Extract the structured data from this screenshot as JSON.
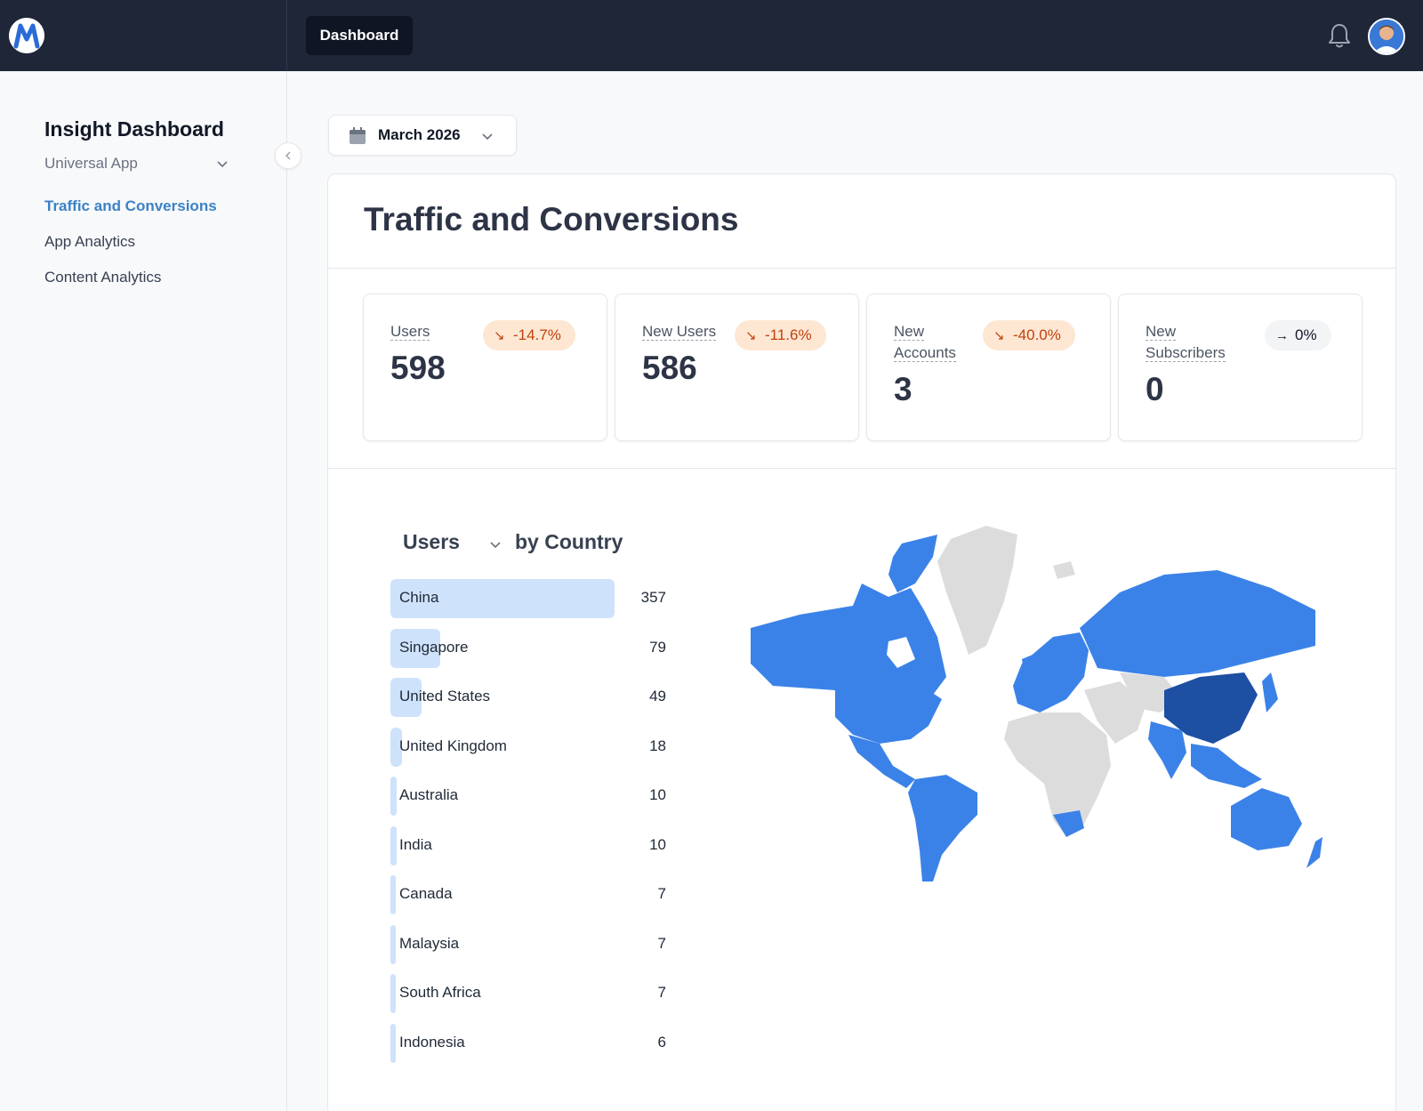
{
  "header": {
    "tab_label": "Dashboard",
    "logo_icon": "m-logo-icon",
    "bell_icon": "bell-icon",
    "avatar_icon": "user-avatar"
  },
  "sidebar": {
    "title": "Insight Dashboard",
    "app_selected": "Universal App",
    "items": [
      {
        "label": "Traffic and Conversions",
        "active": true
      },
      {
        "label": "App Analytics",
        "active": false
      },
      {
        "label": "Content Analytics",
        "active": false
      }
    ],
    "collapse_icon": "chevron-left-icon"
  },
  "date_picker": {
    "label": "March 2026",
    "icon": "calendar-icon"
  },
  "main": {
    "title": "Traffic and Conversions",
    "metrics": [
      {
        "label": "Users",
        "value": "598",
        "change": "-14.7%",
        "trend": "down"
      },
      {
        "label": "New Users",
        "value": "586",
        "change": "-11.6%",
        "trend": "down"
      },
      {
        "label": "New Accounts",
        "value": "3",
        "change": "-40.0%",
        "trend": "down"
      },
      {
        "label": "New Subscribers",
        "value": "0",
        "change": "0%",
        "trend": "flat"
      }
    ],
    "country_panel": {
      "metric_select": "Users",
      "by_label": "by Country"
    }
  },
  "colors": {
    "accent": "#3b82c4",
    "bar": "#cfe2fb",
    "map_high": "#1d4fa3",
    "map_mid": "#3b82e8",
    "map_none": "#dcdcdc",
    "badge_bg": "#fde7d3",
    "badge_text": "#c2410c"
  },
  "chart_data": {
    "type": "bar",
    "categories": [
      "China",
      "Singapore",
      "United States",
      "United Kingdom",
      "Australia",
      "India",
      "Canada",
      "Malaysia",
      "South Africa",
      "Indonesia"
    ],
    "values": [
      357,
      79,
      49,
      18,
      10,
      10,
      7,
      7,
      7,
      6
    ],
    "title": "",
    "xlabel": "",
    "ylabel": ""
  }
}
